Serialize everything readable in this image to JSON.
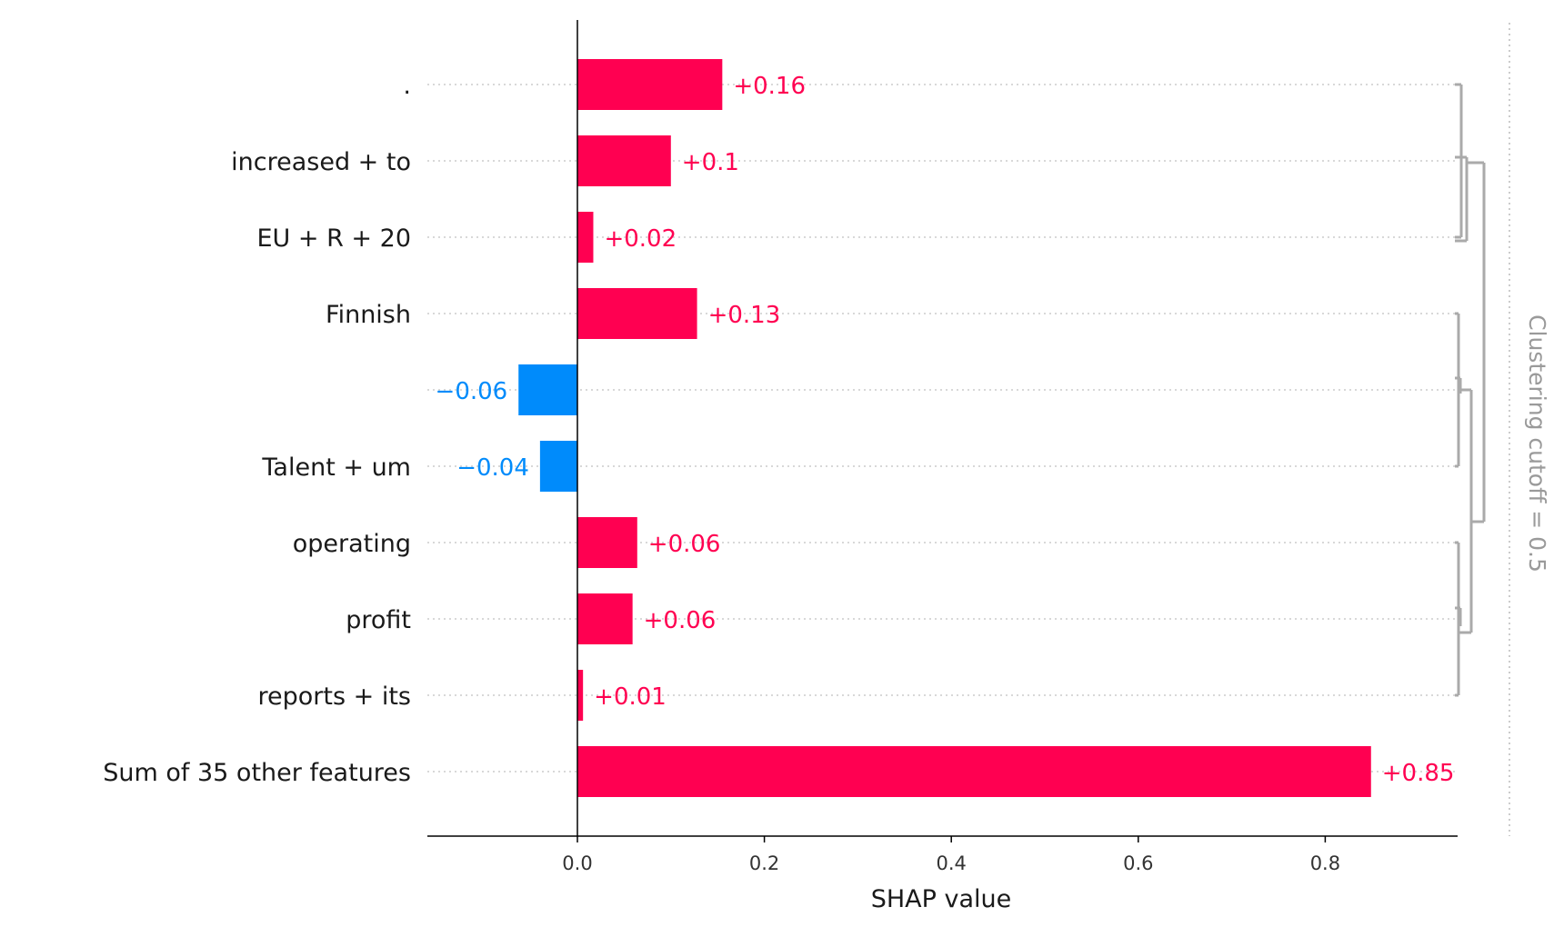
{
  "chart_data": {
    "type": "bar",
    "orientation": "horizontal",
    "xlabel": "SHAP value",
    "xlim": [
      -0.16,
      0.95
    ],
    "xticks": [
      0.0,
      0.2,
      0.4,
      0.6,
      0.8
    ],
    "xtick_labels": [
      "0.0",
      "0.2",
      "0.4",
      "0.6",
      "0.8"
    ],
    "categories": [
      ".",
      "increased + to",
      "EU + R + 20",
      "Finnish",
      "",
      "Talent + um",
      "operating",
      "profit",
      "reports + its",
      "Sum of 35 other features"
    ],
    "values": [
      0.155,
      0.1,
      0.017,
      0.128,
      -0.063,
      -0.04,
      0.064,
      0.059,
      0.006,
      0.849
    ],
    "value_labels": [
      "+0.16",
      "+0.1",
      "+0.02",
      "+0.13",
      "−0.06",
      "−0.04",
      "+0.06",
      "+0.06",
      "+0.01",
      "+0.85"
    ],
    "colors": {
      "positive": "#ff0051",
      "negative": "#008bfb",
      "dendrogram": "#aaaaaa",
      "cutoff": "#999999"
    },
    "cutoff_label": "Clustering cutoff = 0.5",
    "dendrogram_groups": [
      [
        0,
        1,
        2
      ],
      [
        3,
        4,
        5
      ],
      [
        6,
        7,
        8
      ]
    ]
  }
}
